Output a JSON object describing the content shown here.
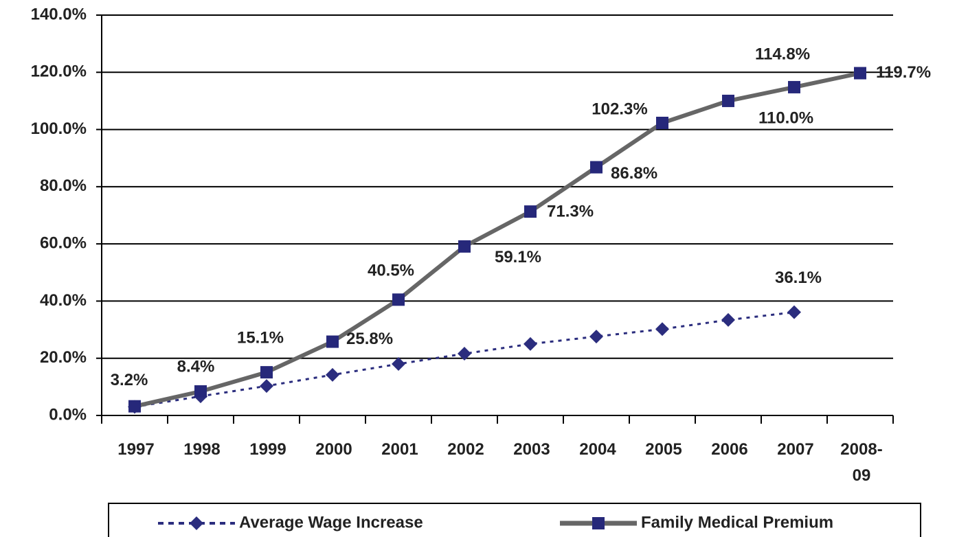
{
  "chart_data": {
    "type": "line",
    "categories": [
      "1997",
      "1998",
      "1999",
      "2000",
      "2001",
      "2002",
      "2003",
      "2004",
      "2005",
      "2006",
      "2007",
      "2008-\n09"
    ],
    "series": [
      {
        "name": "Average Wage Increase",
        "color": "#2b2d7e",
        "line_style": "dotted",
        "marker": "diamond",
        "values": [
          3.0,
          6.7,
          10.3,
          14.2,
          18.0,
          21.6,
          25.0,
          27.6,
          30.2,
          33.4,
          36.1,
          null
        ],
        "value_labels": [
          null,
          null,
          null,
          null,
          null,
          null,
          null,
          null,
          null,
          null,
          "36.1%",
          null
        ]
      },
      {
        "name": "Family Medical Premium",
        "color": "#666666",
        "marker_color": "#26287a",
        "line_style": "solid",
        "marker": "square",
        "values": [
          3.2,
          8.4,
          15.1,
          25.8,
          40.5,
          59.1,
          71.3,
          86.8,
          102.3,
          110.0,
          114.8,
          119.7
        ],
        "value_labels": [
          "3.2%",
          "8.4%",
          "15.1%",
          "25.8%",
          "40.5%",
          "59.1%",
          "71.3%",
          "86.8%",
          "102.3%",
          "110.0%",
          "114.8%",
          "119.7%"
        ]
      }
    ],
    "ylim": [
      0,
      140
    ],
    "yticks": [
      {
        "value": 0,
        "label": "0.0%"
      },
      {
        "value": 20,
        "label": "20.0%"
      },
      {
        "value": 40,
        "label": "40.0%"
      },
      {
        "value": 60,
        "label": "60.0%"
      },
      {
        "value": 80,
        "label": "80.0%"
      },
      {
        "value": 100,
        "label": "100.0%"
      },
      {
        "value": 120,
        "label": "120.0%"
      },
      {
        "value": 140,
        "label": "140.0%"
      }
    ],
    "grid": true,
    "legend": "bottom"
  }
}
